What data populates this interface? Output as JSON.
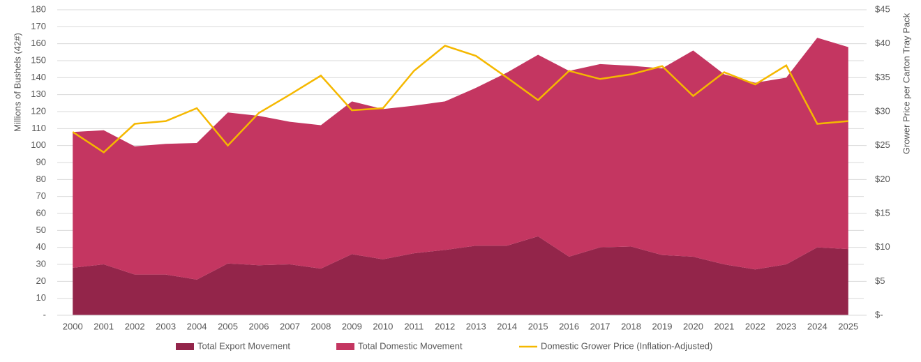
{
  "chart_data": {
    "type": "stacked-area-line",
    "categories": [
      "2000",
      "2001",
      "2002",
      "2003",
      "2004",
      "2005",
      "2006",
      "2007",
      "2008",
      "2009",
      "2010",
      "2011",
      "2012",
      "2013",
      "2014",
      "2015",
      "2016",
      "2017",
      "2018",
      "2019",
      "2020",
      "2021",
      "2022",
      "2023",
      "2024",
      "2025"
    ],
    "y_label": "Millions of Bushels (42#)",
    "y2_label": "Grower Price per Carton Tray Pack",
    "ylim": [
      0,
      180
    ],
    "yticks": [
      {
        "value": 0,
        "label": "-"
      },
      10,
      20,
      30,
      40,
      50,
      60,
      70,
      80,
      90,
      100,
      110,
      120,
      130,
      140,
      150,
      160,
      170,
      180
    ],
    "y2lim": [
      0,
      45
    ],
    "y2ticks": [
      {
        "value": 0,
        "label": "$-"
      },
      {
        "value": 5,
        "label": "$5"
      },
      {
        "value": 10,
        "label": "$10"
      },
      {
        "value": 15,
        "label": "$15"
      },
      {
        "value": 20,
        "label": "$20"
      },
      {
        "value": 25,
        "label": "$25"
      },
      {
        "value": 30,
        "label": "$30"
      },
      {
        "value": 35,
        "label": "$35"
      },
      {
        "value": 40,
        "label": "$40"
      },
      {
        "value": 45,
        "label": "$45"
      }
    ],
    "grid": true,
    "legend": "bottom",
    "series": [
      {
        "name": "Total Export Movement",
        "color": "#93254a",
        "kind": "area",
        "values": [
          28,
          30,
          24,
          24,
          21,
          30.5,
          29.5,
          30,
          27.5,
          36,
          33,
          36.5,
          38.5,
          41,
          41,
          46.5,
          34.5,
          40,
          40.5,
          35.5,
          34.5,
          30,
          27,
          30,
          40,
          39
        ]
      },
      {
        "name": "Total Domestic Movement",
        "color": "#c43661",
        "kind": "area",
        "values": [
          80,
          79,
          75.5,
          77,
          80.5,
          89,
          88,
          84,
          84.5,
          90,
          88.5,
          87,
          87.5,
          93,
          102,
          107,
          109.5,
          108,
          106.5,
          110,
          121.5,
          112,
          110,
          110,
          123.5,
          119
        ]
      },
      {
        "name": "Domestic Grower Price (Inflation-Adjusted)",
        "color": "#f5b800",
        "kind": "line",
        "axis": "y2",
        "values": [
          27,
          24,
          28.2,
          28.6,
          30.5,
          25,
          29.8,
          32.5,
          35.3,
          30.2,
          30.5,
          36,
          39.7,
          38.2,
          35,
          31.7,
          36,
          34.8,
          35.5,
          36.7,
          32.3,
          35.8,
          34,
          36.8,
          28.2,
          28.6
        ]
      }
    ]
  }
}
